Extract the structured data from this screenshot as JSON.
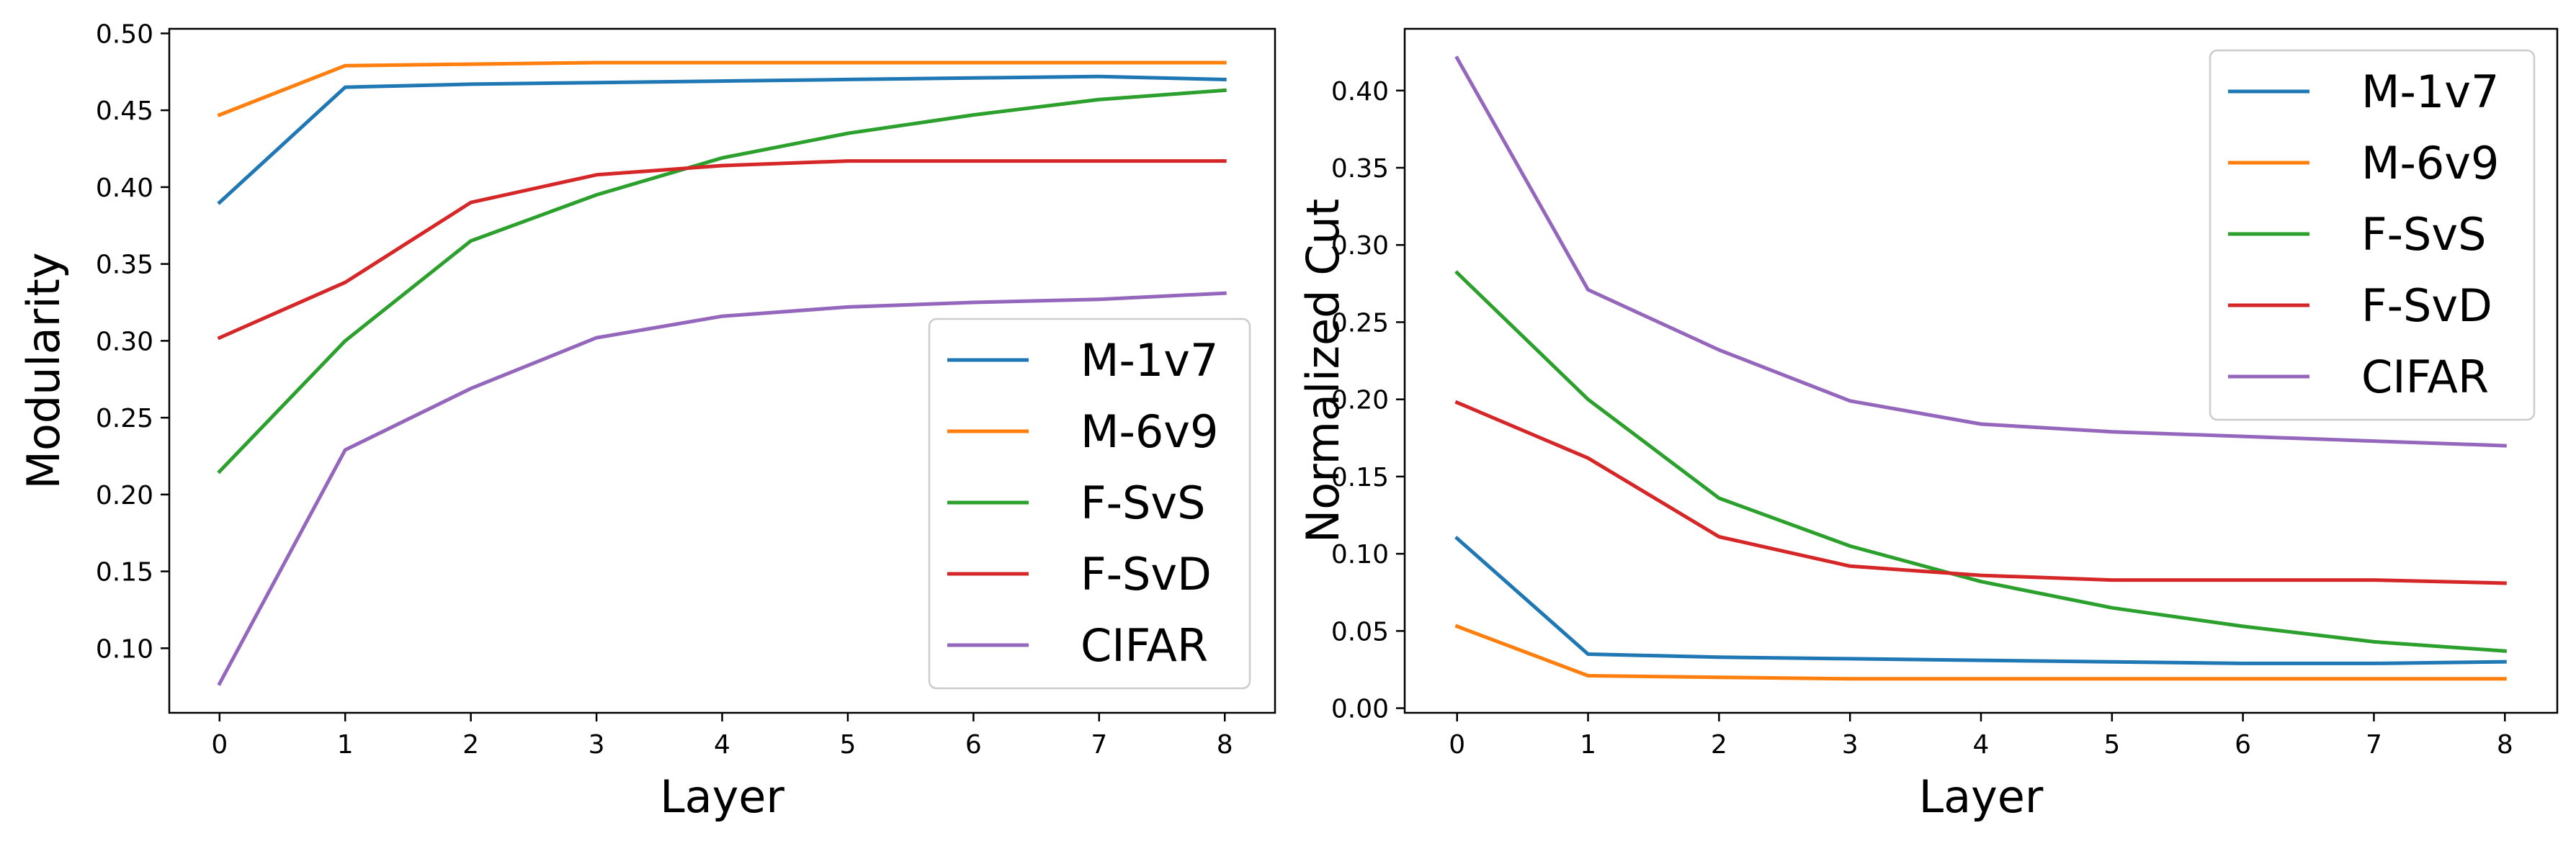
{
  "chart_data": [
    {
      "type": "line",
      "title": "",
      "xlabel": "Layer",
      "ylabel": "Modularity",
      "x": [
        0,
        1,
        2,
        3,
        4,
        5,
        6,
        7,
        8
      ],
      "xlim": [
        -0.4,
        8.4
      ],
      "ylim": [
        0.058,
        0.503
      ],
      "xticks": [
        "0",
        "1",
        "2",
        "3",
        "4",
        "5",
        "6",
        "7",
        "8"
      ],
      "yticks": [
        "0.10",
        "0.15",
        "0.20",
        "0.25",
        "0.30",
        "0.35",
        "0.40",
        "0.45",
        "0.50"
      ],
      "grid": false,
      "legend_position": "lower-right",
      "series": [
        {
          "name": "M-1v7",
          "color": "#1f77b4",
          "values": [
            0.39,
            0.465,
            0.467,
            0.468,
            0.469,
            0.47,
            0.471,
            0.472,
            0.47
          ]
        },
        {
          "name": "M-6v9",
          "color": "#ff7f0e",
          "values": [
            0.447,
            0.479,
            0.48,
            0.481,
            0.481,
            0.481,
            0.481,
            0.481,
            0.481
          ]
        },
        {
          "name": "F-SvS",
          "color": "#2ca02c",
          "values": [
            0.215,
            0.3,
            0.365,
            0.395,
            0.419,
            0.435,
            0.447,
            0.457,
            0.463
          ]
        },
        {
          "name": "F-SvD",
          "color": "#d62728",
          "values": [
            0.302,
            0.338,
            0.39,
            0.408,
            0.414,
            0.417,
            0.417,
            0.417,
            0.417
          ]
        },
        {
          "name": "CIFAR",
          "color": "#9467bd",
          "values": [
            0.077,
            0.229,
            0.269,
            0.302,
            0.316,
            0.322,
            0.325,
            0.327,
            0.331
          ]
        }
      ]
    },
    {
      "type": "line",
      "title": "",
      "xlabel": "Layer",
      "ylabel": "Normalized Cut",
      "x": [
        0,
        1,
        2,
        3,
        4,
        5,
        6,
        7,
        8
      ],
      "xlim": [
        -0.4,
        8.4
      ],
      "ylim": [
        -0.003,
        0.44
      ],
      "xticks": [
        "0",
        "1",
        "2",
        "3",
        "4",
        "5",
        "6",
        "7",
        "8"
      ],
      "yticks": [
        "0.00",
        "0.05",
        "0.10",
        "0.15",
        "0.20",
        "0.25",
        "0.30",
        "0.35",
        "0.40"
      ],
      "grid": false,
      "legend_position": "upper-right",
      "series": [
        {
          "name": "M-1v7",
          "color": "#1f77b4",
          "values": [
            0.11,
            0.035,
            0.033,
            0.032,
            0.031,
            0.03,
            0.029,
            0.029,
            0.03
          ]
        },
        {
          "name": "M-6v9",
          "color": "#ff7f0e",
          "values": [
            0.053,
            0.021,
            0.02,
            0.019,
            0.019,
            0.019,
            0.019,
            0.019,
            0.019
          ]
        },
        {
          "name": "F-SvS",
          "color": "#2ca02c",
          "values": [
            0.282,
            0.2,
            0.136,
            0.105,
            0.082,
            0.065,
            0.053,
            0.043,
            0.037
          ]
        },
        {
          "name": "F-SvD",
          "color": "#d62728",
          "values": [
            0.198,
            0.162,
            0.111,
            0.092,
            0.086,
            0.083,
            0.083,
            0.083,
            0.081
          ]
        },
        {
          "name": "CIFAR",
          "color": "#9467bd",
          "values": [
            0.421,
            0.271,
            0.232,
            0.199,
            0.184,
            0.179,
            0.176,
            0.173,
            0.17
          ]
        }
      ]
    }
  ]
}
